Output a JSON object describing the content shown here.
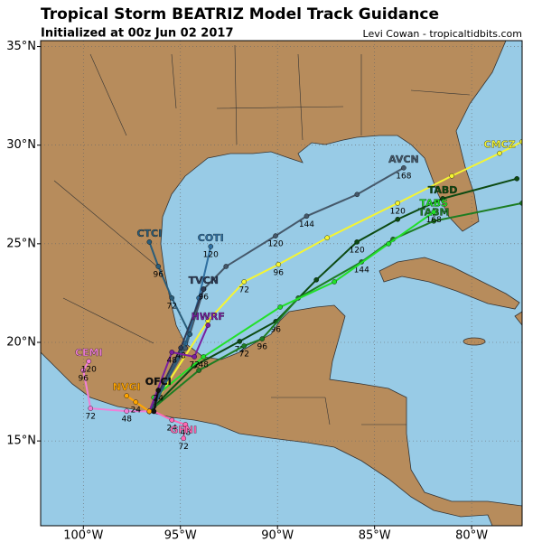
{
  "map": {
    "title": "Tropical Storm BEATRIZ Model Track Guidance",
    "subtitle": "Initialized at 00z Jun 02 2017",
    "credit": "Levi Cowan - tropicaltidbits.com",
    "xlim": [
      -102.2,
      -77.4
    ],
    "ylim": [
      10.7,
      35.3
    ],
    "xticks": [
      {
        "value": -100,
        "label": "100°W"
      },
      {
        "value": -95,
        "label": "95°W"
      },
      {
        "value": -90,
        "label": "90°W"
      },
      {
        "value": -85,
        "label": "85°W"
      },
      {
        "value": -80,
        "label": "80°W"
      }
    ],
    "yticks": [
      {
        "value": 35,
        "label": "35°N"
      },
      {
        "value": 30,
        "label": "30°N"
      },
      {
        "value": 25,
        "label": "25°N"
      },
      {
        "value": 20,
        "label": "20°N"
      },
      {
        "value": 15,
        "label": "15°N"
      }
    ],
    "grid": true,
    "tracks": [
      {
        "name": "AVCN",
        "color": "#45586a",
        "lon": [
          -96.6,
          -94.74,
          -93.8,
          -92.65,
          -90.1,
          -88.5,
          -85.9,
          -83.5
        ],
        "lat": [
          16.5,
          19.7,
          22.7,
          23.85,
          25.4,
          26.4,
          27.5,
          28.85
        ],
        "hours": [
          null,
          null,
          null,
          null,
          120,
          144,
          null,
          168
        ]
      },
      {
        "name": "CMCZ",
        "color": "#f5f532",
        "lon": [
          -96.6,
          -93.58,
          -91.72,
          -89.95,
          -87.44,
          -83.81,
          -81.02,
          -78.56,
          -77.4
        ],
        "lat": [
          16.5,
          21.1,
          23.07,
          23.95,
          25.3,
          27.06,
          28.44,
          29.59,
          30.18
        ],
        "hours": [
          null,
          null,
          72,
          96,
          null,
          120,
          null,
          null,
          null
        ]
      },
      {
        "name": "TABD",
        "color": "#0c4a12",
        "lon": [
          -96.6,
          -94.28,
          -91.95,
          -90.09,
          -88.0,
          -85.91,
          -83.81,
          -81.49,
          -77.67
        ],
        "lat": [
          16.5,
          18.81,
          20.05,
          21.06,
          23.17,
          25.09,
          26.24,
          27.29,
          28.3
        ],
        "hours": [
          null,
          null,
          72,
          96,
          null,
          120,
          null,
          null,
          null
        ]
      },
      {
        "name": "TABM",
        "color": "#1d7d22",
        "lon": [
          -96.6,
          -94.05,
          -91.72,
          -90.79,
          -88.93,
          -85.67,
          -84.05,
          -81.95,
          -77.4
        ],
        "lat": [
          16.5,
          18.58,
          19.82,
          20.18,
          22.25,
          24.08,
          25.23,
          26.15,
          27.06
        ],
        "hours": [
          null,
          null,
          72,
          96,
          null,
          144,
          null,
          null,
          null
        ]
      },
      {
        "name": "TABS",
        "color": "#22e02a",
        "lon": [
          -96.37,
          -93.81,
          -89.86,
          -87.07,
          -84.28,
          -81.95
        ],
        "lat": [
          17.2,
          19.27,
          21.79,
          23.07,
          25.0,
          26.61
        ],
        "hours": [
          null,
          48,
          null,
          null,
          null,
          168
        ]
      },
      {
        "name": "COTI",
        "color": "#2f6fa0",
        "lon": [
          -96.37,
          -94.74,
          -94.05,
          -93.44
        ],
        "lat": [
          16.74,
          19.95,
          22.25,
          24.86
        ],
        "hours": [
          null,
          null,
          null,
          120
        ]
      },
      {
        "name": "CTCI",
        "color": "#2a5d7a",
        "lon": [
          -96.37,
          -94.51,
          -95.44,
          -96.14,
          -96.6
        ],
        "lat": [
          16.74,
          20.41,
          22.25,
          23.85,
          25.09
        ],
        "hours": [
          null,
          null,
          72,
          96,
          null
        ]
      },
      {
        "name": "TVCN",
        "color": "#2e3a55",
        "lon": [
          -96.6,
          -94.98,
          -93.81
        ],
        "lat": [
          16.5,
          19.72,
          22.7
        ],
        "hours": [
          null,
          48,
          96
        ]
      },
      {
        "name": "HWRF",
        "color": "#7a1fa0",
        "lon": [
          -96.6,
          -95.44,
          -94.28,
          -93.58
        ],
        "lat": [
          16.5,
          19.5,
          19.27,
          20.87
        ],
        "hours": [
          null,
          48,
          72,
          null
        ]
      },
      {
        "name": "GFNI",
        "color": "#ff69b4",
        "lon": [
          -96.37,
          -95.44,
          -94.74,
          -94.84
        ],
        "lat": [
          16.5,
          16.06,
          15.83,
          15.13
        ],
        "hours": [
          null,
          24,
          48,
          72
        ]
      },
      {
        "name": "CEMI",
        "color": "#f07fd8",
        "lon": [
          -96.6,
          -97.77,
          -99.63,
          -100.0,
          -99.72
        ],
        "lat": [
          16.5,
          16.51,
          16.65,
          18.58,
          19.04
        ],
        "hours": [
          null,
          48,
          72,
          96,
          120
        ]
      },
      {
        "name": "NVGI",
        "color": "#ffa500",
        "lon": [
          -96.6,
          -97.3,
          -97.77
        ],
        "lat": [
          16.5,
          16.97,
          17.29
        ],
        "hours": [
          null,
          24,
          null
        ]
      },
      {
        "name": "OFCI",
        "color": "#111111",
        "lon": [
          -96.37,
          -96.14
        ],
        "lat": [
          16.5,
          17.57
        ],
        "hours": [
          null,
          24
        ]
      }
    ]
  }
}
